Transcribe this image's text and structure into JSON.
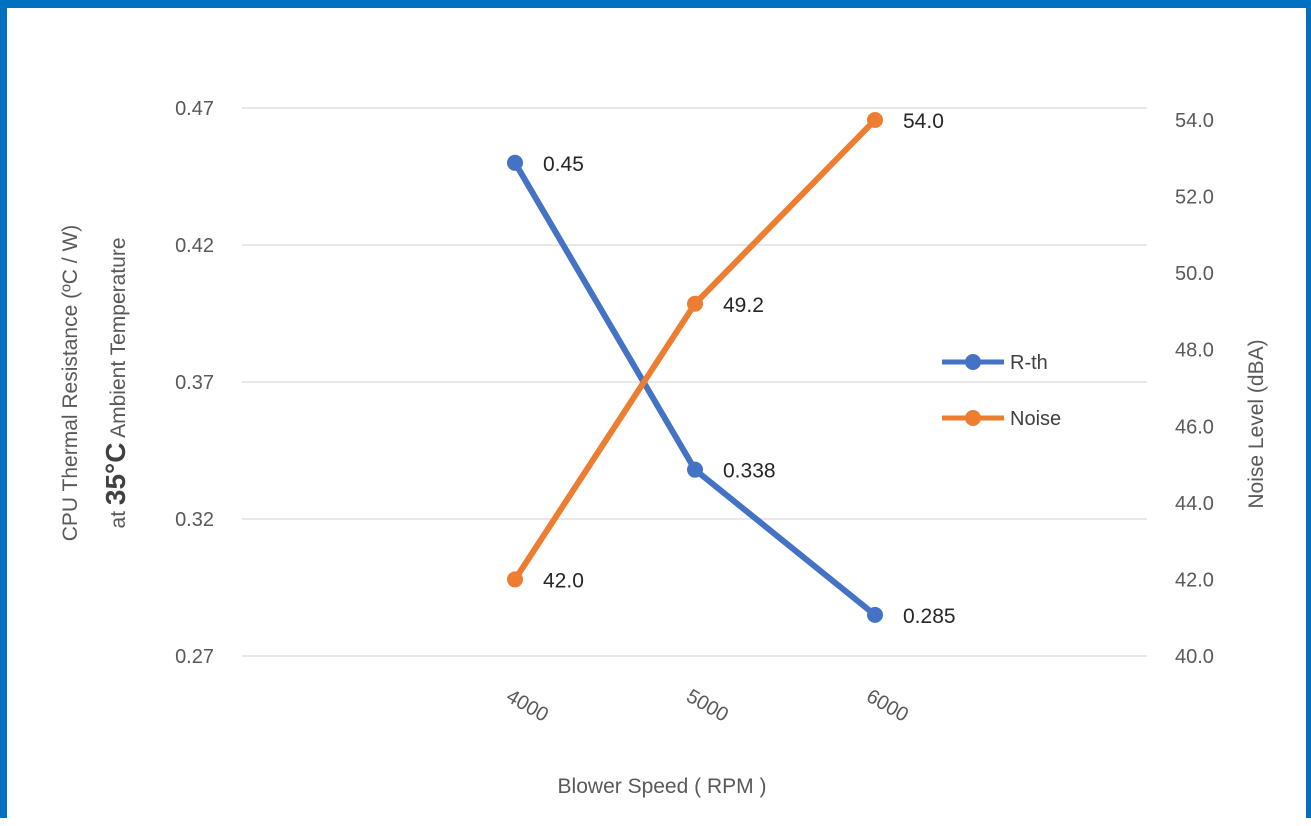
{
  "chart_data": {
    "type": "line",
    "x": [
      4000,
      5000,
      6000
    ],
    "categories": [
      "4000",
      "5000",
      "6000"
    ],
    "series": [
      {
        "name": "R-th",
        "axis": "left",
        "color": "#4472c4",
        "values": [
          0.45,
          0.338,
          0.285
        ],
        "labels": [
          "0.45",
          "0.338",
          "0.285"
        ]
      },
      {
        "name": "Noise",
        "axis": "right",
        "color": "#ed7d31",
        "values": [
          42.0,
          49.2,
          54.0
        ],
        "labels": [
          "42.0",
          "49.2",
          "54.0"
        ]
      }
    ],
    "xlabel": "Blower Speed ( RPM )",
    "ylabel_line1": "CPU Thermal Resistance  (ºC / W)",
    "ylabel_line2_prefix": "at ",
    "ylabel_line2_bold": "35°C",
    "ylabel_line2_suffix": " Ambient Temperature",
    "y2label": "Noise Level (dBA)",
    "ylim": [
      0.27,
      0.47
    ],
    "y2lim": [
      40.0,
      54.0
    ],
    "yticks": [
      "0.27",
      "0.32",
      "0.37",
      "0.42",
      "0.47"
    ],
    "y2ticks": [
      "40.0",
      "42.0",
      "44.0",
      "46.0",
      "48.0",
      "50.0",
      "52.0",
      "54.0"
    ],
    "grid": true,
    "legend_position": "right"
  }
}
